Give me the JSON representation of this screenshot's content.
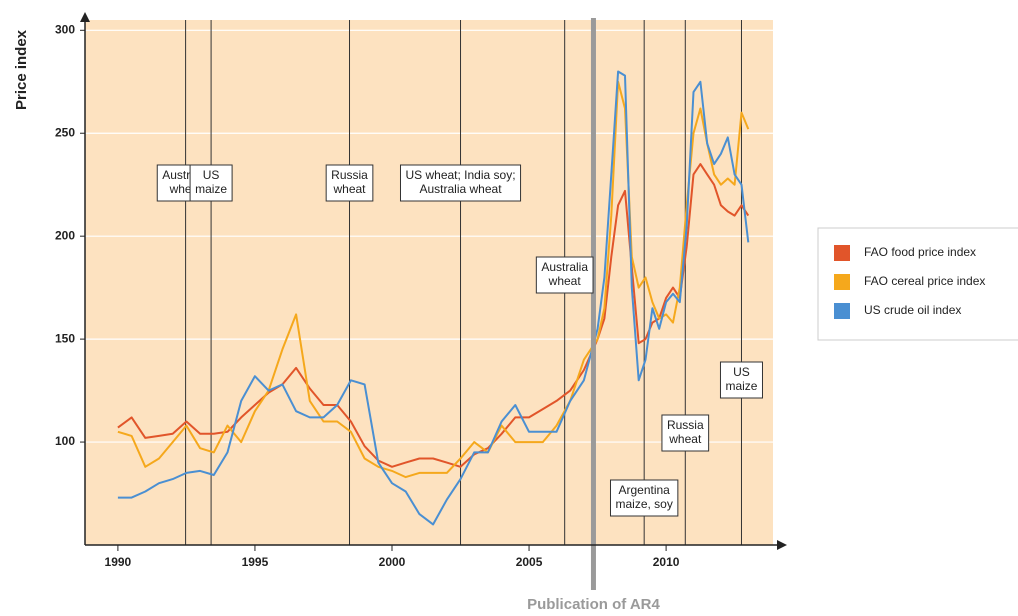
{
  "chart_data": {
    "type": "line",
    "ylabel": "Price index",
    "xlim": [
      1988.8,
      2013.9
    ],
    "ylim": [
      50,
      305
    ],
    "xticks": [
      1990,
      1995,
      2000,
      2005,
      2010
    ],
    "yticks": [
      100,
      150,
      200,
      250,
      300
    ],
    "grid": true,
    "legend": "right",
    "x": [
      1990,
      1990.5,
      1991,
      1991.5,
      1992,
      1992.5,
      1993,
      1993.5,
      1994,
      1994.5,
      1995,
      1995.5,
      1996,
      1996.5,
      1997,
      1997.5,
      1998,
      1998.5,
      1999,
      1999.5,
      2000,
      2000.5,
      2001,
      2001.5,
      2002,
      2002.5,
      2003,
      2003.5,
      2004,
      2004.5,
      2005,
      2005.5,
      2006,
      2006.5,
      2007,
      2007.5,
      2007.75,
      2008,
      2008.25,
      2008.5,
      2008.75,
      2009,
      2009.25,
      2009.5,
      2009.75,
      2010,
      2010.25,
      2010.5,
      2010.75,
      2011,
      2011.25,
      2011.5,
      2011.75,
      2012,
      2012.25,
      2012.5,
      2012.75,
      2013
    ],
    "series": [
      {
        "name": "FAO food price index",
        "color": "#e1552a",
        "values": [
          107,
          112,
          102,
          103,
          104,
          110,
          104,
          104,
          105,
          112,
          118,
          124,
          128,
          136,
          126,
          118,
          118,
          110,
          98,
          91,
          88,
          90,
          92,
          92,
          90,
          88,
          94,
          97,
          104,
          112,
          112,
          116,
          120,
          125,
          135,
          150,
          160,
          190,
          215,
          222,
          185,
          148,
          150,
          158,
          160,
          170,
          175,
          170,
          195,
          230,
          235,
          230,
          225,
          215,
          212,
          210,
          215,
          210
        ]
      },
      {
        "name": "FAO cereal price index",
        "color": "#f5a81c",
        "values": [
          105,
          103,
          88,
          92,
          100,
          108,
          97,
          95,
          108,
          100,
          115,
          125,
          145,
          162,
          120,
          110,
          110,
          105,
          92,
          88,
          86,
          83,
          85,
          85,
          85,
          92,
          100,
          95,
          108,
          100,
          100,
          100,
          108,
          120,
          140,
          150,
          165,
          210,
          275,
          262,
          190,
          175,
          180,
          168,
          160,
          162,
          158,
          175,
          215,
          250,
          262,
          245,
          230,
          225,
          228,
          225,
          260,
          252
        ]
      },
      {
        "name": "US crude oil index",
        "color": "#4a8fd2",
        "values": [
          73,
          73,
          76,
          80,
          82,
          85,
          86,
          84,
          95,
          120,
          132,
          125,
          128,
          115,
          112,
          112,
          118,
          130,
          128,
          90,
          80,
          76,
          65,
          60,
          72,
          82,
          95,
          95,
          110,
          118,
          105,
          105,
          105,
          120,
          130,
          155,
          180,
          230,
          280,
          278,
          175,
          130,
          140,
          165,
          155,
          168,
          172,
          168,
          205,
          270,
          275,
          245,
          235,
          240,
          248,
          230,
          225,
          197
        ]
      }
    ],
    "events": [
      {
        "x": 1992.47,
        "label": [
          "Australia",
          "wheat"
        ]
      },
      {
        "x": 1993.4,
        "label": [
          "US",
          "maize"
        ]
      },
      {
        "x": 1998.45,
        "label": [
          "Russia",
          "wheat"
        ]
      },
      {
        "x": 2002.5,
        "label": [
          "US wheat; India soy;",
          "Australia wheat"
        ]
      },
      {
        "x": 2006.3,
        "label": [
          "Australia",
          "wheat"
        ]
      },
      {
        "x": 2009.2,
        "label": [
          "Argentina",
          "maize, soy"
        ]
      },
      {
        "x": 2010.7,
        "label": [
          "Russia",
          "wheat"
        ]
      },
      {
        "x": 2012.75,
        "label": [
          "US",
          "maize"
        ]
      }
    ],
    "publication": {
      "x": 2007.35,
      "label": "Publication of AR4"
    }
  }
}
